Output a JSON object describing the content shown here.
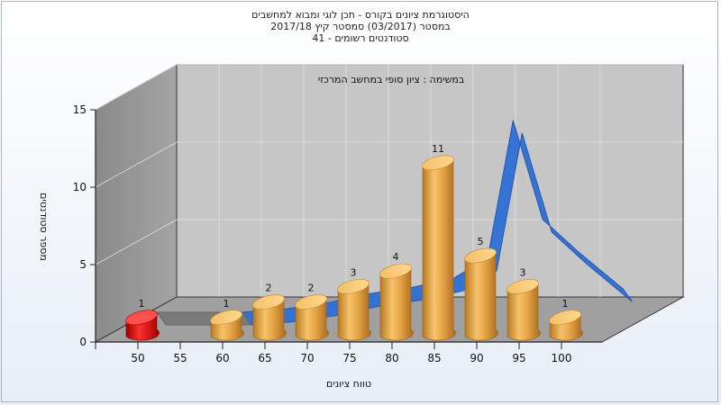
{
  "titles": {
    "line1": "היסטוגרמת ציונים בקורס - תכן לוגי ומבוא למחשבים",
    "line2": "במסטר  (03/2017)  סמסטר קיץ  2017/18",
    "line3": "סטודנטים רשומים - 41"
  },
  "chart_data": {
    "type": "bar",
    "title": "היסטוגרמת ציונים בקורס - תכן לוגי ומבוא למחשבים",
    "subtitle": "במשימה : ציון סופי במחשב המרכזי",
    "xlabel": "טווח ציונים",
    "ylabel": "מספר סטודנטים",
    "ylim": [
      0,
      15
    ],
    "y_ticks": [
      0,
      5,
      10,
      15
    ],
    "categories": [
      "50",
      "55",
      "60",
      "65",
      "70",
      "75",
      "80",
      "85",
      "90",
      "95",
      "100"
    ],
    "bars": [
      {
        "x": 50,
        "value": 1,
        "color": "#dd1111"
      },
      {
        "x": 60,
        "value": 1,
        "color": "#e0a040"
      },
      {
        "x": 65,
        "value": 2,
        "color": "#e0a040"
      },
      {
        "x": 70,
        "value": 2,
        "color": "#e0a040"
      },
      {
        "x": 75,
        "value": 3,
        "color": "#e0a040"
      },
      {
        "x": 80,
        "value": 4,
        "color": "#e0a040"
      },
      {
        "x": 85,
        "value": 11,
        "color": "#e0a040"
      },
      {
        "x": 90,
        "value": 5,
        "color": "#e0a040"
      },
      {
        "x": 95,
        "value": 3,
        "color": "#e0a040"
      },
      {
        "x": 100,
        "value": 1,
        "color": "#e0a040"
      }
    ],
    "curve": {
      "x": [
        47.5,
        57.5,
        62.5,
        67.5,
        72.5,
        77.5,
        82.5,
        86.5,
        89.5,
        93,
        97,
        102.5
      ],
      "values": [
        0,
        0,
        0.2,
        0.6,
        1.2,
        1.6,
        2.2,
        3.5,
        12.4,
        6,
        4,
        1.5
      ],
      "color": "#2e6fd6"
    },
    "grid": true,
    "style": "3d",
    "colors": {
      "bar": "#e0a040",
      "bar_low": "#dd1111",
      "curve": "#2e6fd6",
      "back_wall": "#c4c4c4",
      "side_wall": "#8e8e8e",
      "floor": "#9e9e9e"
    }
  }
}
